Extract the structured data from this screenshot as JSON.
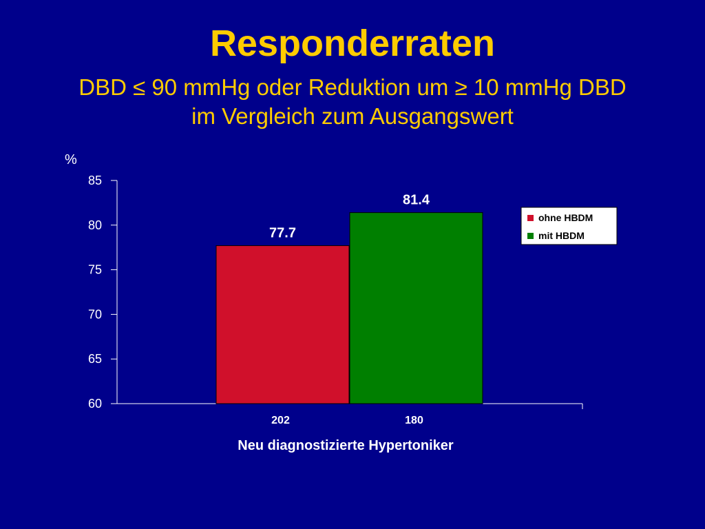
{
  "slide": {
    "title": "Responderraten",
    "subtitle_line1": "DBD ≤ 90 mmHg oder Reduktion um ≥ 10 mmHg DBD",
    "subtitle_line2": "im Vergleich zum Ausgangswert"
  },
  "colors": {
    "background": "#00008b",
    "title": "#ffcc00",
    "ohne_HBDM": "#d0102b",
    "mit_HBDM": "#007f00"
  },
  "chart_data": {
    "type": "bar",
    "title": "",
    "xlabel": "Neu diagnostizierte Hypertoniker",
    "ylabel": "%",
    "ylim": [
      60,
      85
    ],
    "yticks": [
      60,
      65,
      70,
      75,
      80,
      85
    ],
    "categories": [
      "202",
      "180"
    ],
    "values": [
      77.7,
      81.4
    ],
    "value_labels": [
      "77.7",
      "81.4"
    ],
    "legend": [
      "ohne HBDM",
      "mit HBDM"
    ],
    "legend_placement": "top-right",
    "grid": false
  }
}
